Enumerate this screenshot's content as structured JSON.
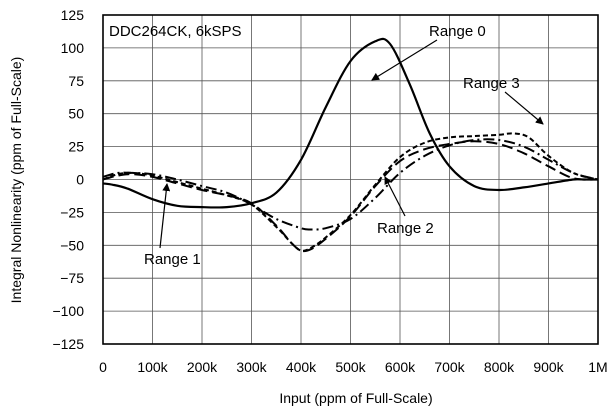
{
  "chart_data": {
    "type": "line",
    "title": "",
    "inset_label": "DDC264CK, 6kSPS",
    "xlabel": "Input (ppm of Full-Scale)",
    "ylabel": "Integral Nonlinearity (ppm of Full-Scale)",
    "xlim": [
      0,
      1000000
    ],
    "ylim": [
      -125,
      125
    ],
    "grid": true,
    "x_ticks": [
      0,
      100000,
      200000,
      300000,
      400000,
      500000,
      600000,
      700000,
      800000,
      900000,
      1000000
    ],
    "x_tick_labels": [
      "0",
      "100k",
      "200k",
      "300k",
      "400k",
      "500k",
      "600k",
      "700k",
      "800k",
      "900k",
      "1M"
    ],
    "y_ticks": [
      125,
      100,
      75,
      50,
      25,
      0,
      -25,
      -50,
      -75,
      -100,
      -125
    ],
    "y_tick_labels": [
      "125",
      "100",
      "75",
      "50",
      "25",
      "0",
      "−25",
      "−50",
      "−75",
      "−100",
      "−125"
    ],
    "series": [
      {
        "name": "Range 0",
        "style": "solid",
        "x": [
          0,
          20000,
          50000,
          100000,
          150000,
          200000,
          250000,
          300000,
          350000,
          400000,
          450000,
          500000,
          550000,
          580000,
          620000,
          660000,
          700000,
          750000,
          800000,
          850000,
          900000,
          950000,
          970000,
          1000000
        ],
        "y": [
          -3,
          -4,
          -7,
          -15,
          -20,
          -21,
          -21,
          -18,
          -10,
          15,
          55,
          90,
          105,
          103,
          72,
          35,
          10,
          -5,
          -8,
          -6,
          -3,
          0,
          0,
          0
        ]
      },
      {
        "name": "Range 1",
        "style": "long-dash",
        "x": [
          0,
          30000,
          60000,
          100000,
          150000,
          200000,
          250000,
          300000,
          350000,
          380000,
          400000,
          420000,
          450000,
          500000,
          550000,
          600000,
          650000,
          700000,
          750000,
          800000,
          850000,
          900000,
          950000,
          1000000
        ],
        "y": [
          0,
          3,
          4,
          2,
          -3,
          -8,
          -12,
          -18,
          -35,
          -48,
          -54,
          -53,
          -45,
          -28,
          -5,
          14,
          23,
          27,
          29,
          27,
          20,
          10,
          1,
          0
        ]
      },
      {
        "name": "Range 2",
        "style": "dash-dot",
        "x": [
          0,
          30000,
          60000,
          100000,
          150000,
          200000,
          250000,
          300000,
          350000,
          400000,
          420000,
          450000,
          500000,
          550000,
          600000,
          650000,
          700000,
          750000,
          800000,
          850000,
          900000,
          950000,
          1000000
        ],
        "y": [
          2,
          5,
          5,
          4,
          0,
          -5,
          -10,
          -19,
          -30,
          -37,
          -38,
          -37,
          -30,
          -14,
          5,
          18,
          26,
          30,
          30,
          25,
          15,
          5,
          0
        ]
      },
      {
        "name": "Range 3",
        "style": "short-dash",
        "x": [
          0,
          30000,
          60000,
          100000,
          150000,
          200000,
          250000,
          300000,
          350000,
          380000,
          400000,
          420000,
          450000,
          500000,
          550000,
          600000,
          650000,
          700000,
          750000,
          800000,
          830000,
          860000,
          900000,
          950000,
          1000000
        ],
        "y": [
          0,
          4,
          5,
          3,
          -2,
          -7,
          -12,
          -19,
          -36,
          -48,
          -54,
          -52,
          -44,
          -27,
          -4,
          17,
          28,
          32,
          33,
          34,
          35,
          32,
          18,
          5,
          0
        ]
      }
    ],
    "annotations": [
      {
        "text": "Range 0",
        "series": "Range 0"
      },
      {
        "text": "Range 3",
        "series": "Range 3"
      },
      {
        "text": "Range 2",
        "series": "Range 2"
      },
      {
        "text": "Range 1",
        "series": "Range 1"
      }
    ]
  }
}
